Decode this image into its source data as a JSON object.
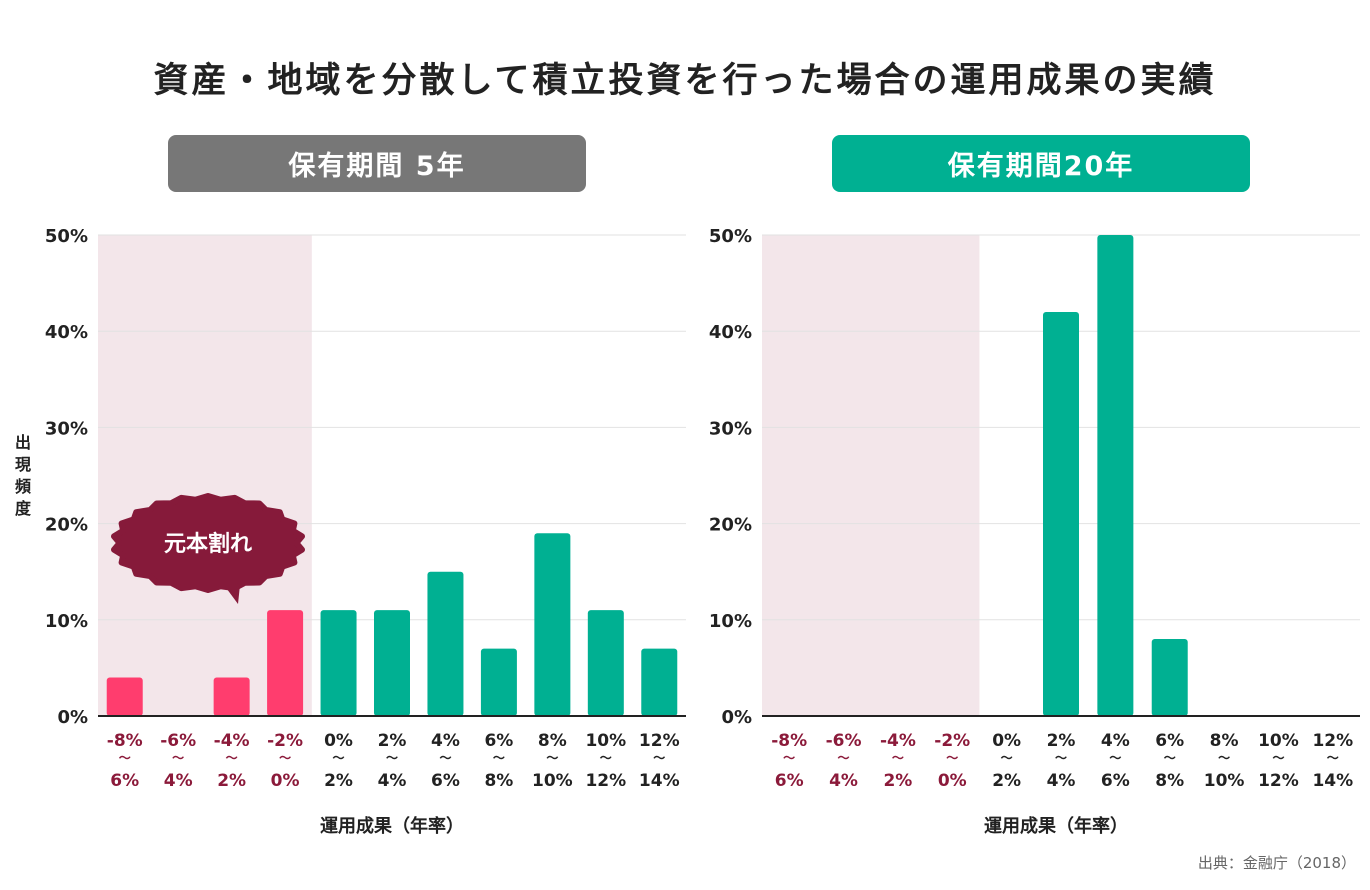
{
  "title": "資産・地域を分散して積立投資を行った場合の運用成果の実績",
  "y_axis_label": "出現頻度",
  "source": "出典：金融庁（2018）",
  "colors": {
    "positive": "#00b092",
    "negative": "#ff3d6e",
    "loss_region": "#f3e6ea",
    "loss_label": "#8b1a3a",
    "bubble": "#861a3a",
    "header_5y": "#777777",
    "header_20y": "#00b092"
  },
  "chart_data": [
    {
      "type": "bar",
      "title": "保有期間 5年",
      "xlabel": "運用成果（年率）",
      "ylabel": "出現頻度",
      "ylim": [
        0,
        50
      ],
      "yticks": [
        "0%",
        "10%",
        "20%",
        "30%",
        "40%",
        "50%"
      ],
      "grid": true,
      "categories": [
        [
          "-8%",
          "〜",
          "6%"
        ],
        [
          "-6%",
          "〜",
          "4%"
        ],
        [
          "-4%",
          "〜",
          "2%"
        ],
        [
          "-2%",
          "〜",
          "0%"
        ],
        [
          "0%",
          "〜",
          "2%"
        ],
        [
          "2%",
          "〜",
          "4%"
        ],
        [
          "4%",
          "〜",
          "6%"
        ],
        [
          "6%",
          "〜",
          "8%"
        ],
        [
          "8%",
          "〜",
          "10%"
        ],
        [
          "10%",
          "〜",
          "12%"
        ],
        [
          "12%",
          "〜",
          "14%"
        ]
      ],
      "values": [
        4,
        0,
        4,
        11,
        11,
        11,
        15,
        7,
        19,
        11,
        7
      ],
      "loss_categories": 4,
      "annotation": "元本割れ"
    },
    {
      "type": "bar",
      "title": "保有期間20年",
      "xlabel": "運用成果（年率）",
      "ylim": [
        0,
        50
      ],
      "yticks": [
        "0%",
        "10%",
        "20%",
        "30%",
        "40%",
        "50%"
      ],
      "grid": true,
      "categories": [
        [
          "-8%",
          "〜",
          "6%"
        ],
        [
          "-6%",
          "〜",
          "4%"
        ],
        [
          "-4%",
          "〜",
          "2%"
        ],
        [
          "-2%",
          "〜",
          "0%"
        ],
        [
          "0%",
          "〜",
          "2%"
        ],
        [
          "2%",
          "〜",
          "4%"
        ],
        [
          "4%",
          "〜",
          "6%"
        ],
        [
          "6%",
          "〜",
          "8%"
        ],
        [
          "8%",
          "〜",
          "10%"
        ],
        [
          "10%",
          "〜",
          "12%"
        ],
        [
          "12%",
          "〜",
          "14%"
        ]
      ],
      "values": [
        0,
        0,
        0,
        0,
        0,
        42,
        50,
        8,
        0,
        0,
        0
      ],
      "loss_categories": 4
    }
  ]
}
